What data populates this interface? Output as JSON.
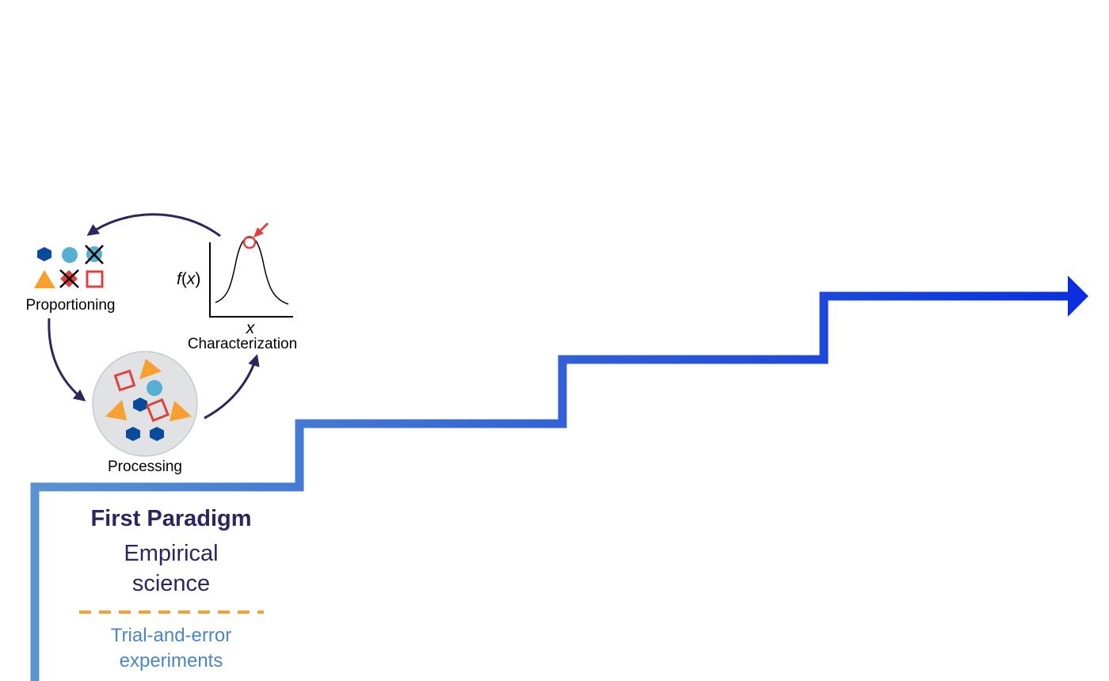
{
  "cycle": {
    "proportioning_label": "Proportioning",
    "processing_label": "Processing",
    "characterization_label": "Characterization",
    "plot_y_label_f": "f",
    "plot_y_label_open": "(",
    "plot_y_label_x": "x",
    "plot_y_label_close": ")",
    "plot_x_label": "x"
  },
  "paradigm": {
    "title": "First Paradigm",
    "subtitle_line1": "Empirical",
    "subtitle_line2": "science",
    "method_line1": "Trial-and-error",
    "method_line2": "experiments"
  },
  "colors": {
    "dark_navy": "#2b2560",
    "hexagon_blue": "#0a4a9c",
    "circle_light_blue": "#55b0d3",
    "triangle_orange": "#f7a030",
    "square_red": "#e0403e",
    "dash_orange": "#f7a030",
    "method_text_blue": "#4a86c5",
    "stair_start": "#5b93d0",
    "stair_end": "#0a2fe0",
    "processing_disc": "#e1e2e4"
  },
  "icons": {
    "cycle_arrows": "curved-arrow-icon",
    "stair": "staircase-arrow-icon",
    "peak_marker": "red-circle-arrow-icon"
  }
}
